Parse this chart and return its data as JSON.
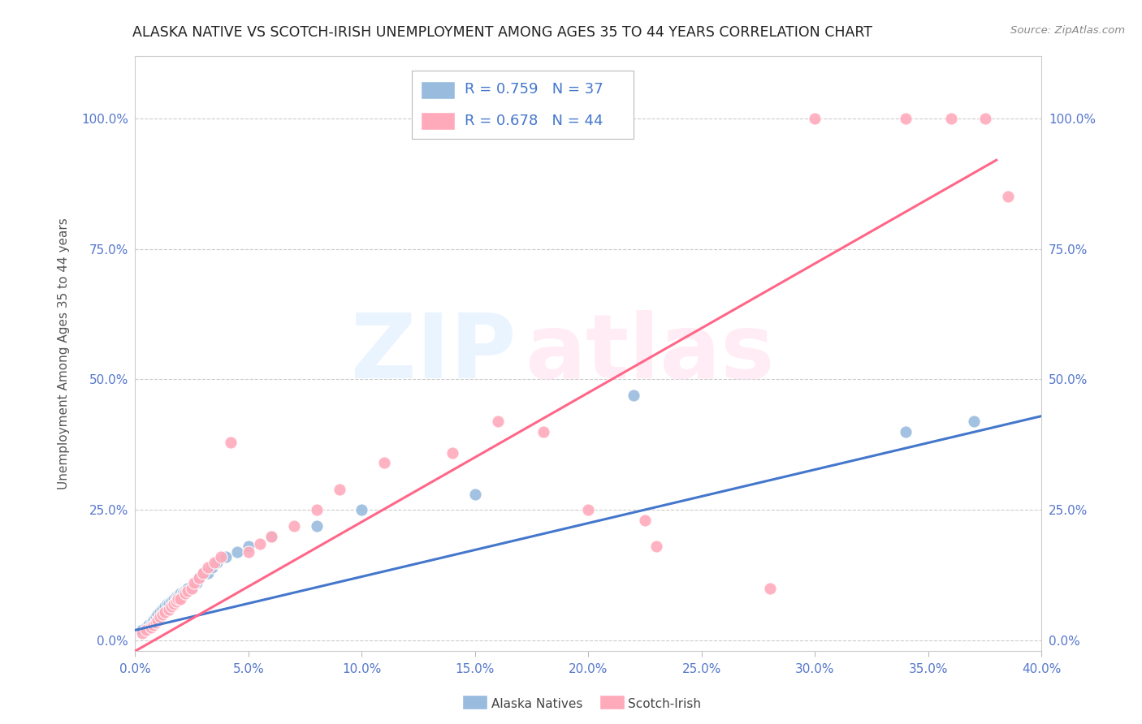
{
  "title": "ALASKA NATIVE VS SCOTCH-IRISH UNEMPLOYMENT AMONG AGES 35 TO 44 YEARS CORRELATION CHART",
  "source": "Source: ZipAtlas.com",
  "ylabel": "Unemployment Among Ages 35 to 44 years",
  "xlim": [
    0.0,
    0.4
  ],
  "ylim": [
    -0.02,
    1.12
  ],
  "xticks": [
    0.0,
    0.05,
    0.1,
    0.15,
    0.2,
    0.25,
    0.3,
    0.35,
    0.4
  ],
  "yticks": [
    0.0,
    0.25,
    0.5,
    0.75,
    1.0
  ],
  "blue_color": "#99BBDD",
  "pink_color": "#FFAABB",
  "blue_line_color": "#4477CC",
  "pink_line_color": "#FF6688",
  "legend_R_blue": "R = 0.759",
  "legend_N_blue": "N = 37",
  "legend_R_pink": "R = 0.678",
  "legend_N_pink": "N = 44",
  "label_blue": "Alaska Natives",
  "label_pink": "Scotch-Irish",
  "axis_tick_color": "#5577CC",
  "title_color": "#222222",
  "blue_scatter_x": [
    0.003,
    0.005,
    0.006,
    0.007,
    0.008,
    0.009,
    0.01,
    0.011,
    0.012,
    0.013,
    0.014,
    0.015,
    0.016,
    0.017,
    0.018,
    0.019,
    0.02,
    0.021,
    0.022,
    0.023,
    0.025,
    0.027,
    0.028,
    0.03,
    0.032,
    0.034,
    0.036,
    0.04,
    0.045,
    0.05,
    0.06,
    0.08,
    0.1,
    0.15,
    0.22,
    0.34,
    0.37
  ],
  "blue_scatter_y": [
    0.02,
    0.025,
    0.03,
    0.03,
    0.04,
    0.045,
    0.05,
    0.055,
    0.06,
    0.065,
    0.07,
    0.07,
    0.075,
    0.08,
    0.085,
    0.085,
    0.09,
    0.09,
    0.095,
    0.1,
    0.1,
    0.11,
    0.12,
    0.13,
    0.13,
    0.14,
    0.15,
    0.16,
    0.17,
    0.18,
    0.2,
    0.22,
    0.25,
    0.28,
    0.47,
    0.4,
    0.42
  ],
  "pink_scatter_x": [
    0.003,
    0.005,
    0.007,
    0.008,
    0.009,
    0.01,
    0.011,
    0.012,
    0.013,
    0.015,
    0.016,
    0.017,
    0.018,
    0.019,
    0.02,
    0.022,
    0.023,
    0.025,
    0.026,
    0.028,
    0.03,
    0.032,
    0.035,
    0.038,
    0.042,
    0.05,
    0.055,
    0.06,
    0.07,
    0.08,
    0.09,
    0.11,
    0.14,
    0.16,
    0.18,
    0.2,
    0.225,
    0.23,
    0.28,
    0.3,
    0.34,
    0.36,
    0.375,
    0.385
  ],
  "pink_scatter_y": [
    0.015,
    0.02,
    0.025,
    0.03,
    0.035,
    0.04,
    0.045,
    0.05,
    0.055,
    0.06,
    0.065,
    0.07,
    0.075,
    0.08,
    0.08,
    0.09,
    0.095,
    0.1,
    0.11,
    0.12,
    0.13,
    0.14,
    0.15,
    0.16,
    0.38,
    0.17,
    0.185,
    0.2,
    0.22,
    0.25,
    0.29,
    0.34,
    0.36,
    0.42,
    0.4,
    0.25,
    0.23,
    0.18,
    0.1,
    1.0,
    1.0,
    1.0,
    1.0,
    0.85
  ],
  "blue_line_x": [
    0.0,
    0.4
  ],
  "blue_line_y": [
    0.02,
    0.43
  ],
  "pink_line_x": [
    0.0,
    0.38
  ],
  "pink_line_y": [
    -0.02,
    0.92
  ]
}
